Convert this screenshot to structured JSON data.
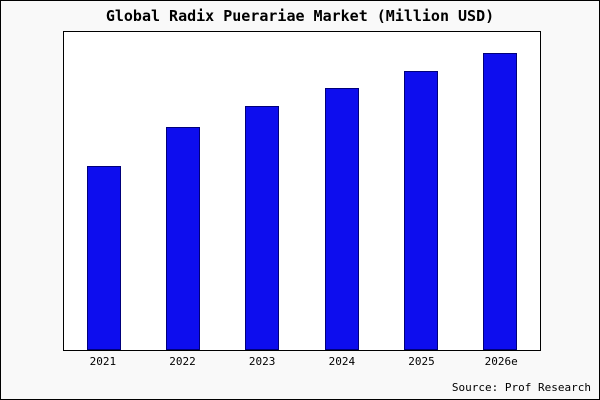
{
  "chart_data": {
    "type": "bar",
    "title": "Global Radix Puerariae Market (Million USD)",
    "categories": [
      "2021",
      "2022",
      "2023",
      "2024",
      "2025",
      "2026e"
    ],
    "values": [
      62,
      75,
      82,
      88,
      94,
      100
    ],
    "xlabel": "",
    "ylabel": "",
    "ylim": [
      0,
      107
    ],
    "grid": false,
    "legend_position": "none",
    "bar_color": "#0d0dee",
    "bar_edge_color": "#00007a",
    "plot_background": "#ffffff",
    "figure_background": "#f9f9f9"
  },
  "footer": {
    "source": "Source: Prof Research"
  }
}
